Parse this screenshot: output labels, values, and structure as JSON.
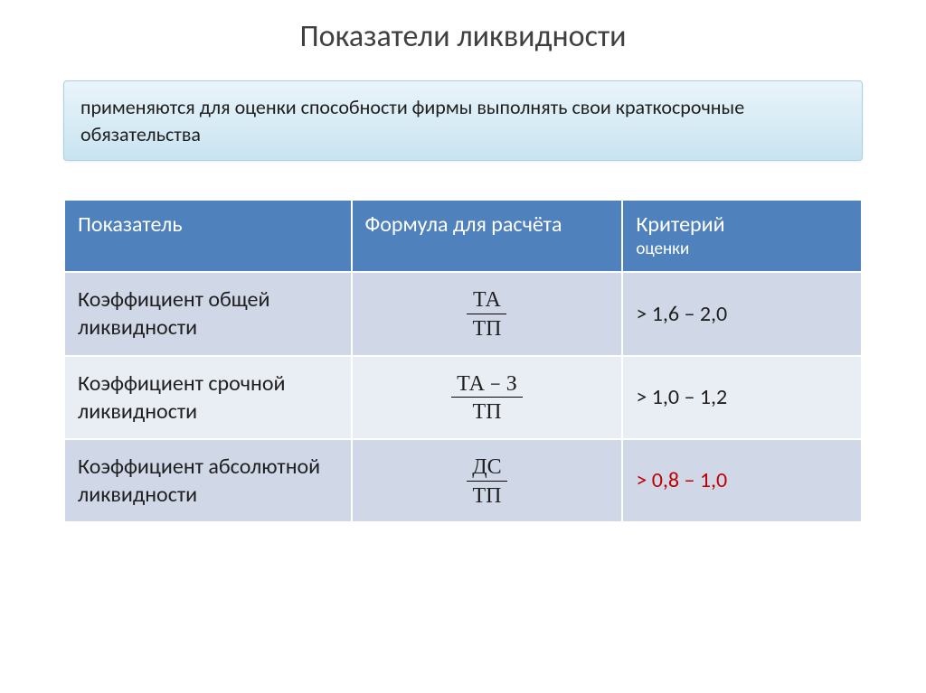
{
  "title": "Показатели ликвидности",
  "subtitle": "применяются для оценки способности фирмы выполнять свои краткосрочные обязательства",
  "columns": {
    "c1": "Показатель",
    "c2": "Формула для расчёта",
    "c3_line1": "Критерий",
    "c3_line2": "оценки"
  },
  "rows": [
    {
      "name": "Коэффициент общей ликвидности",
      "num": "ТА",
      "den": "ТП",
      "crit": "> 1,6 – 2,0",
      "crit_color": "#1f1f1f",
      "band": "odd"
    },
    {
      "name": "Коэффициент срочной ликвидности",
      "num": "ТА − З",
      "den": "ТП",
      "crit": "> 1,0 – 1,2",
      "crit_color": "#1f1f1f",
      "band": "even"
    },
    {
      "name": "Коэффициент абсолютной ликвидности",
      "num": "ДС",
      "den": "ТП",
      "crit": "> 0,8 – 1,0",
      "crit_color": "#c00000",
      "band": "odd"
    }
  ],
  "styling": {
    "page_bg": "#ffffff",
    "title_color": "#404040",
    "title_fontsize": 34,
    "subtitle_bg_top": "#eaf4fa",
    "subtitle_bg_bottom": "#c8e4f1",
    "subtitle_border": "#a9cfe3",
    "subtitle_fontsize": 22,
    "header_bg": "#4f81bd",
    "header_text": "#ffffff",
    "header_fontsize": 24,
    "row_odd_bg": "#d0d8e8",
    "row_even_bg": "#e9edf4",
    "cell_fontsize": 24,
    "cell_border": "#ffffff",
    "column_widths_pct": [
      36,
      34,
      30
    ]
  }
}
